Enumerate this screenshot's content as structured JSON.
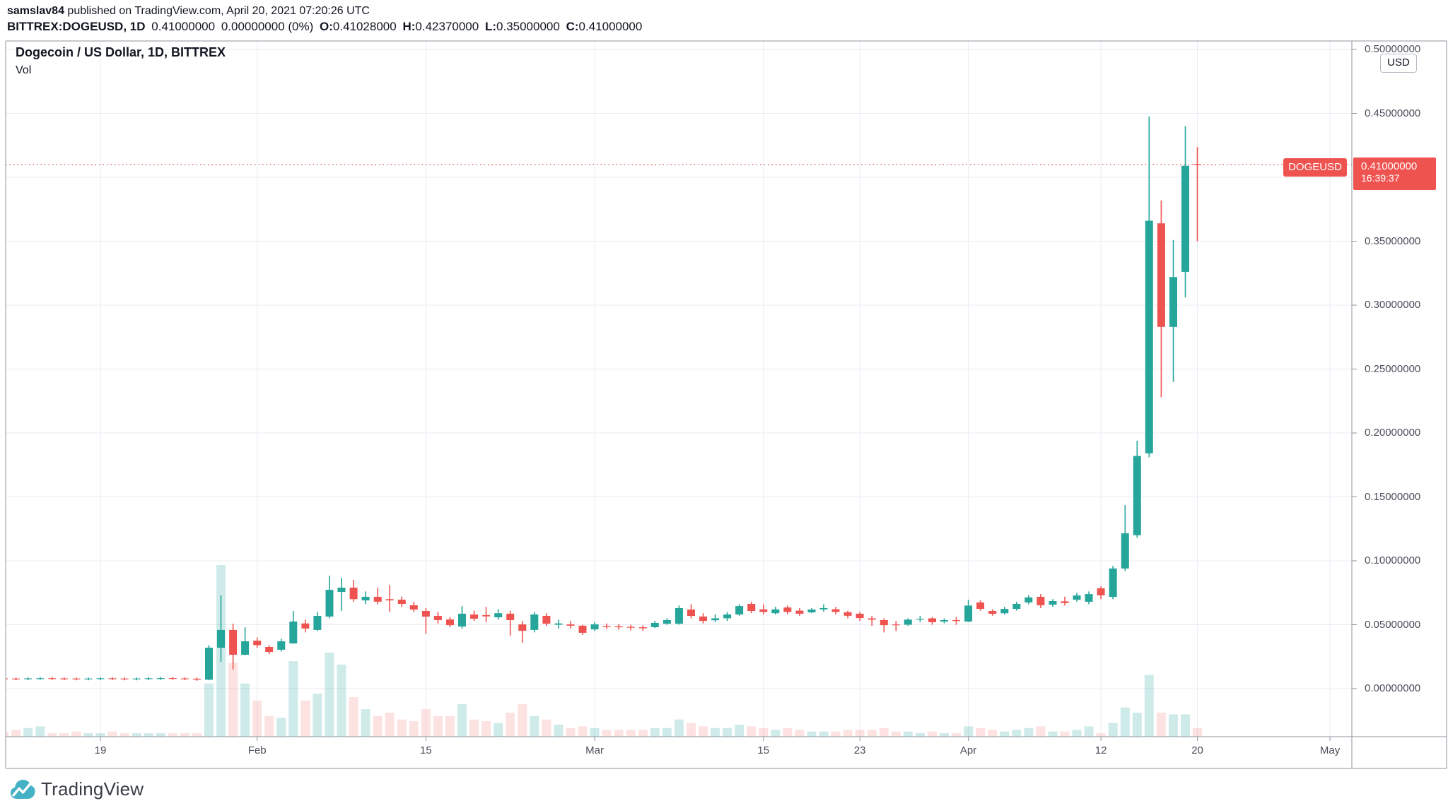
{
  "header": {
    "author": "samslav84",
    "publish_info": " published on TradingView.com, April 20, 2021 07:20:26 UTC",
    "symbol_text": "BITTREX:DOGEUSD, 1D",
    "last_price": "0.41000000",
    "change_text": "0.00000000 (0%)",
    "open_label": "O:",
    "open_value": "0.41028000",
    "high_label": "H:",
    "high_value": "0.42370000",
    "low_label": "L:",
    "low_value": "0.35000000",
    "close_label": "C:",
    "close_value": "0.41000000"
  },
  "legend": {
    "title": "Dogecoin / US Dollar, 1D, BITTREX",
    "indicator": "Vol"
  },
  "price_axis": {
    "currency_button": "USD",
    "labels": [
      {
        "label": "0.50000000",
        "value": 0.5
      },
      {
        "label": "0.45000000",
        "value": 0.45
      },
      {
        "label": "0.35000000",
        "value": 0.35
      },
      {
        "label": "0.30000000",
        "value": 0.3
      },
      {
        "label": "0.25000000",
        "value": 0.25
      },
      {
        "label": "0.20000000",
        "value": 0.2
      },
      {
        "label": "0.15000000",
        "value": 0.15
      },
      {
        "label": "0.10000000",
        "value": 0.1
      },
      {
        "label": "0.05000000",
        "value": 0.05
      },
      {
        "label": "0.00000000",
        "value": 0.0
      }
    ],
    "last_price_badge": {
      "price": "0.41000000",
      "countdown": "16:39:37"
    }
  },
  "price_line_badge": {
    "symbol": "DOGEUSD"
  },
  "time_axis": {
    "labels": [
      {
        "label": "19",
        "index": 8
      },
      {
        "label": "Feb",
        "index": 21
      },
      {
        "label": "15",
        "index": 35
      },
      {
        "label": "Mar",
        "index": 49
      },
      {
        "label": "15",
        "index": 63
      },
      {
        "label": "23",
        "index": 71
      },
      {
        "label": "Apr",
        "index": 80
      },
      {
        "label": "12",
        "index": 91
      },
      {
        "label": "20",
        "index": 99
      },
      {
        "label": "May",
        "index": 110
      }
    ]
  },
  "footer": {
    "brand": "TradingView"
  },
  "colors": {
    "up": "#26a69a",
    "down": "#ef5350",
    "vol_up": "rgba(38,166,154,0.22)",
    "vol_down": "rgba(239,83,80,0.17)",
    "grid": "#e8ebf3",
    "frame": "#8f939e",
    "axis_text": "#4a4e58",
    "price_line": "#ef5350",
    "badge_bg": "#ef5350",
    "logo_teal": "#45b1c4"
  },
  "chart_data": {
    "type": "candlestick",
    "title": "Dogecoin / US Dollar, 1D, BITTREX",
    "symbol": "BITTREX:DOGEUSD",
    "interval": "1D",
    "last_price": 0.41,
    "ylim": [
      0.0,
      0.5
    ],
    "y_tick_step": 0.05,
    "grid": true,
    "dates": [
      "2021-01-11",
      "2021-01-12",
      "2021-01-13",
      "2021-01-14",
      "2021-01-15",
      "2021-01-16",
      "2021-01-17",
      "2021-01-18",
      "2021-01-19",
      "2021-01-20",
      "2021-01-21",
      "2021-01-22",
      "2021-01-23",
      "2021-01-24",
      "2021-01-25",
      "2021-01-26",
      "2021-01-27",
      "2021-01-28",
      "2021-01-29",
      "2021-01-30",
      "2021-01-31",
      "2021-02-01",
      "2021-02-02",
      "2021-02-03",
      "2021-02-04",
      "2021-02-05",
      "2021-02-06",
      "2021-02-07",
      "2021-02-08",
      "2021-02-09",
      "2021-02-10",
      "2021-02-11",
      "2021-02-12",
      "2021-02-13",
      "2021-02-14",
      "2021-02-15",
      "2021-02-16",
      "2021-02-17",
      "2021-02-18",
      "2021-02-19",
      "2021-02-20",
      "2021-02-21",
      "2021-02-22",
      "2021-02-23",
      "2021-02-24",
      "2021-02-25",
      "2021-02-26",
      "2021-02-27",
      "2021-02-28",
      "2021-03-01",
      "2021-03-02",
      "2021-03-03",
      "2021-03-04",
      "2021-03-05",
      "2021-03-06",
      "2021-03-07",
      "2021-03-08",
      "2021-03-09",
      "2021-03-10",
      "2021-03-11",
      "2021-03-12",
      "2021-03-13",
      "2021-03-14",
      "2021-03-15",
      "2021-03-16",
      "2021-03-17",
      "2021-03-18",
      "2021-03-19",
      "2021-03-20",
      "2021-03-21",
      "2021-03-22",
      "2021-03-23",
      "2021-03-24",
      "2021-03-25",
      "2021-03-26",
      "2021-03-27",
      "2021-03-28",
      "2021-03-29",
      "2021-03-30",
      "2021-03-31",
      "2021-04-01",
      "2021-04-02",
      "2021-04-03",
      "2021-04-04",
      "2021-04-05",
      "2021-04-06",
      "2021-04-07",
      "2021-04-08",
      "2021-04-09",
      "2021-04-10",
      "2021-04-11",
      "2021-04-12",
      "2021-04-13",
      "2021-04-14",
      "2021-04-15",
      "2021-04-16",
      "2021-04-17",
      "2021-04-18",
      "2021-04-19",
      "2021-04-20"
    ],
    "open": [
      0.008,
      0.0079,
      0.0074,
      0.0076,
      0.0082,
      0.008,
      0.0079,
      0.0073,
      0.0075,
      0.0081,
      0.0079,
      0.0073,
      0.0075,
      0.0076,
      0.0083,
      0.008,
      0.0078,
      0.007,
      0.032,
      0.0459,
      0.0265,
      0.0375,
      0.0326,
      0.0304,
      0.0354,
      0.051,
      0.0459,
      0.0564,
      0.0757,
      0.079,
      0.069,
      0.0718,
      0.07,
      0.0696,
      0.0652,
      0.0608,
      0.0569,
      0.0541,
      0.0486,
      0.058,
      0.0575,
      0.0558,
      0.0586,
      0.0503,
      0.0459,
      0.0569,
      0.05,
      0.0502,
      0.0492,
      0.0464,
      0.049,
      0.0488,
      0.0484,
      0.048,
      0.0481,
      0.0508,
      0.0508,
      0.0619,
      0.0564,
      0.0535,
      0.055,
      0.058,
      0.0663,
      0.062,
      0.059,
      0.0635,
      0.061,
      0.0597,
      0.062,
      0.0621,
      0.0597,
      0.0586,
      0.055,
      0.0536,
      0.0502,
      0.05,
      0.0545,
      0.055,
      0.0525,
      0.0536,
      0.0525,
      0.0674,
      0.0608,
      0.059,
      0.0624,
      0.0674,
      0.0718,
      0.0657,
      0.0683,
      0.0696,
      0.068,
      0.0785,
      0.0718,
      0.094,
      0.12,
      0.184,
      0.364,
      0.283,
      0.326,
      0.4103
    ],
    "high": [
      0.0088,
      0.0087,
      0.0088,
      0.009,
      0.009,
      0.0088,
      0.0087,
      0.0087,
      0.0089,
      0.0089,
      0.0087,
      0.0087,
      0.0089,
      0.0091,
      0.0091,
      0.0088,
      0.0086,
      0.034,
      0.0729,
      0.0508,
      0.048,
      0.04,
      0.034,
      0.039,
      0.0608,
      0.054,
      0.06,
      0.0884,
      0.0867,
      0.085,
      0.076,
      0.079,
      0.081,
      0.072,
      0.068,
      0.063,
      0.06,
      0.056,
      0.0646,
      0.061,
      0.064,
      0.062,
      0.061,
      0.053,
      0.06,
      0.059,
      0.054,
      0.053,
      0.05,
      0.052,
      0.051,
      0.0505,
      0.05,
      0.0495,
      0.053,
      0.055,
      0.065,
      0.066,
      0.059,
      0.058,
      0.06,
      0.066,
      0.068,
      0.066,
      0.064,
      0.065,
      0.063,
      0.063,
      0.066,
      0.064,
      0.061,
      0.06,
      0.057,
      0.055,
      0.053,
      0.055,
      0.057,
      0.056,
      0.055,
      0.056,
      0.0695,
      0.069,
      0.062,
      0.064,
      0.068,
      0.073,
      0.074,
      0.07,
      0.072,
      0.075,
      0.076,
      0.08,
      0.096,
      0.1436,
      0.194,
      0.4475,
      0.382,
      0.351,
      0.44,
      0.4237
    ],
    "low": [
      0.0066,
      0.0065,
      0.0066,
      0.0068,
      0.0068,
      0.0066,
      0.0065,
      0.0065,
      0.0067,
      0.0067,
      0.0065,
      0.0065,
      0.0067,
      0.0068,
      0.0069,
      0.0066,
      0.0062,
      0.0066,
      0.021,
      0.0149,
      0.026,
      0.032,
      0.027,
      0.029,
      0.035,
      0.044,
      0.045,
      0.055,
      0.0608,
      0.068,
      0.066,
      0.066,
      0.06,
      0.064,
      0.06,
      0.0431,
      0.051,
      0.048,
      0.047,
      0.053,
      0.052,
      0.054,
      0.0414,
      0.0359,
      0.044,
      0.049,
      0.047,
      0.047,
      0.042,
      0.045,
      0.0465,
      0.046,
      0.0455,
      0.045,
      0.0475,
      0.05,
      0.05,
      0.055,
      0.051,
      0.052,
      0.053,
      0.057,
      0.059,
      0.058,
      0.058,
      0.058,
      0.057,
      0.059,
      0.06,
      0.058,
      0.055,
      0.053,
      0.049,
      0.044,
      0.045,
      0.049,
      0.052,
      0.05,
      0.051,
      0.05,
      0.052,
      0.061,
      0.057,
      0.058,
      0.061,
      0.066,
      0.063,
      0.064,
      0.065,
      0.068,
      0.066,
      0.07,
      0.07,
      0.092,
      0.118,
      0.181,
      0.228,
      0.24,
      0.306,
      0.35
    ],
    "close": [
      0.0074,
      0.0073,
      0.008,
      0.0082,
      0.0076,
      0.0074,
      0.0073,
      0.0079,
      0.0081,
      0.0075,
      0.0073,
      0.0079,
      0.0081,
      0.0083,
      0.0077,
      0.0074,
      0.007,
      0.032,
      0.0459,
      0.0265,
      0.037,
      0.034,
      0.0287,
      0.037,
      0.0525,
      0.047,
      0.0569,
      0.0773,
      0.079,
      0.07,
      0.0718,
      0.068,
      0.069,
      0.0663,
      0.0619,
      0.0564,
      0.0536,
      0.0497,
      0.0586,
      0.0547,
      0.0565,
      0.059,
      0.0536,
      0.0453,
      0.058,
      0.0508,
      0.051,
      0.0492,
      0.0437,
      0.0503,
      0.0483,
      0.048,
      0.0477,
      0.0472,
      0.0514,
      0.0536,
      0.063,
      0.0569,
      0.053,
      0.055,
      0.058,
      0.0646,
      0.0608,
      0.06,
      0.062,
      0.06,
      0.0586,
      0.0619,
      0.063,
      0.06,
      0.057,
      0.0552,
      0.054,
      0.0497,
      0.05,
      0.054,
      0.0547,
      0.052,
      0.0536,
      0.053,
      0.065,
      0.0624,
      0.0586,
      0.0624,
      0.0663,
      0.0713,
      0.0652,
      0.0685,
      0.067,
      0.0729,
      0.074,
      0.073,
      0.094,
      0.1215,
      0.182,
      0.366,
      0.283,
      0.322,
      0.409,
      0.41
    ],
    "volume_rel": [
      3,
      4,
      5,
      6,
      2,
      2,
      3,
      2,
      2,
      3,
      2,
      2,
      2,
      2,
      2,
      2,
      2,
      31,
      100,
      43,
      31,
      21,
      12,
      11,
      44,
      21,
      25,
      49,
      42,
      23,
      16,
      12,
      14,
      10,
      9,
      16,
      12,
      12,
      19,
      10,
      9,
      8,
      14,
      19,
      12,
      10,
      7,
      5,
      6,
      5,
      4,
      4,
      4,
      4,
      5,
      5,
      10,
      8,
      6,
      5,
      5,
      7,
      6,
      5,
      4,
      5,
      4,
      3,
      3,
      3,
      4,
      4,
      4,
      5,
      3,
      3,
      2,
      3,
      2,
      2,
      6,
      5,
      4,
      3,
      4,
      5,
      6,
      3,
      3,
      4,
      6,
      2,
      8,
      17,
      14,
      36,
      14,
      13,
      13,
      5
    ]
  }
}
